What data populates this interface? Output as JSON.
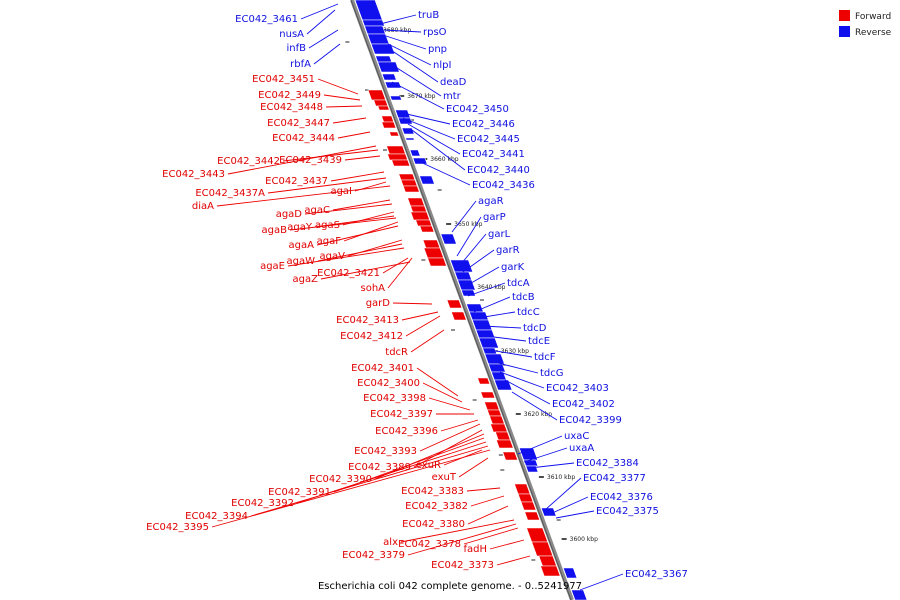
{
  "title": "Escherichia coli 042 complete genome. - 0..5241977",
  "legend": [
    {
      "label": "Forward",
      "color": "#ee0000"
    },
    {
      "label": "Reverse",
      "color": "#1010ee"
    }
  ],
  "colors": {
    "forward": "#ee0000",
    "reverse": "#1010ee",
    "axis": "#777777"
  },
  "ticks": [
    {
      "label": "3680 kbp",
      "at": 3680
    },
    {
      "label": "3670 kbp",
      "at": 3670
    },
    {
      "label": "3660 kbp",
      "at": 3660
    },
    {
      "label": "3650 kbp",
      "at": 3650
    },
    {
      "label": "3640 kbp",
      "at": 3640
    },
    {
      "label": "3630 kbp",
      "at": 3630
    },
    {
      "label": "3620 kbp",
      "at": 3620
    },
    {
      "label": "3610 kbp",
      "at": 3610
    },
    {
      "label": "3600 kbp",
      "at": 3600
    }
  ],
  "reverse_labels": [
    "EC042_3461",
    "nusA",
    "infB",
    "rbfA",
    "truB",
    "rpsO",
    "pnp",
    "nlpI",
    "deaD",
    "mtr",
    "EC042_3450",
    "EC042_3446",
    "EC042_3445",
    "EC042_3441",
    "EC042_3440",
    "EC042_3436",
    "agaR",
    "garP",
    "garL",
    "garR",
    "garK",
    "tdcA",
    "tdcB",
    "tdcC",
    "tdcD",
    "tdcE",
    "tdcF",
    "tdcG",
    "EC042_3403",
    "EC042_3402",
    "EC042_3399",
    "uxaC",
    "uxaA",
    "EC042_3384",
    "EC042_3377",
    "EC042_3376",
    "EC042_3375",
    "EC042_3367"
  ],
  "forward_labels": [
    "EC042_3451",
    "EC042_3449",
    "EC042_3448",
    "EC042_3447",
    "EC042_3444",
    "EC042_3442",
    "EC042_3439",
    "EC042_3443",
    "EC042_3437",
    "EC042_3437A",
    "agaI",
    "diaA",
    "agaC",
    "agaD",
    "agaS",
    "agaY",
    "agaB",
    "agaF",
    "agaA",
    "agaV",
    "agaW",
    "agaE",
    "EC042_3421",
    "agaZ",
    "sohA",
    "garD",
    "EC042_3413",
    "EC042_3412",
    "tdcR",
    "EC042_3401",
    "EC042_3400",
    "EC042_3398",
    "EC042_3397",
    "EC042_3396",
    "EC042_3393",
    "EC042_3389",
    "exuR",
    "EC042_3390",
    "exuT",
    "EC042_3391",
    "EC042_3383",
    "EC042_3392",
    "EC042_3382",
    "EC042_3394",
    "EC042_3395",
    "EC042_3380",
    "alx",
    "EC042_3378",
    "EC042_3379",
    "fadH",
    "EC042_3373"
  ]
}
